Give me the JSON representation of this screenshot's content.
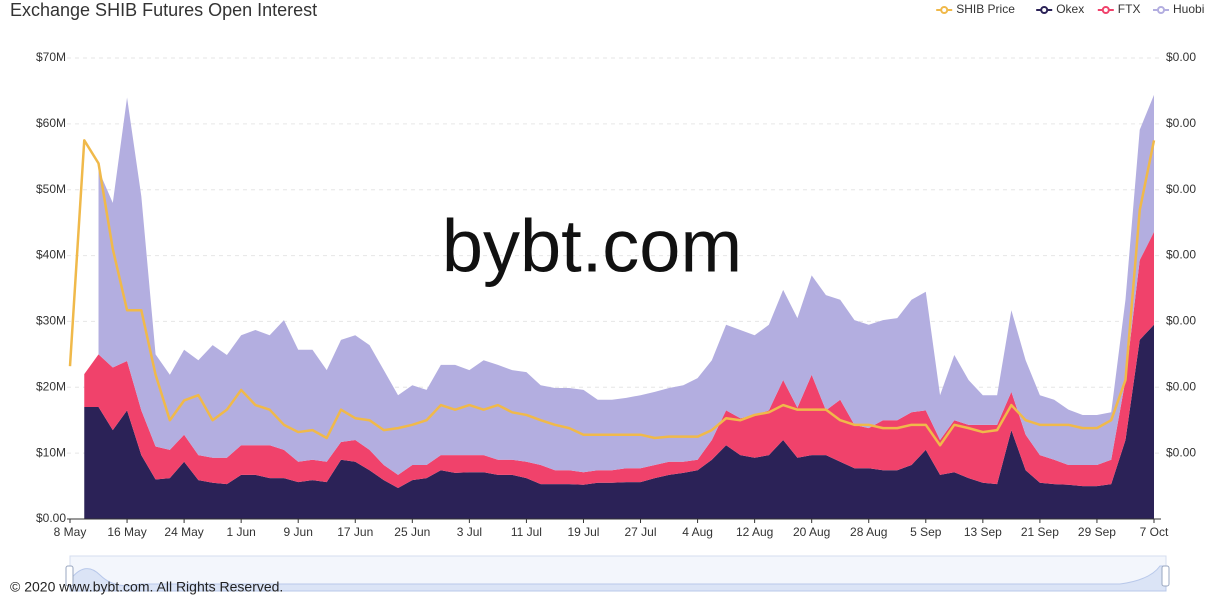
{
  "chart_data": {
    "type": "area",
    "stacked": true,
    "title": "Exchange SHIB Futures Open Interest",
    "annotation": "bybt.com",
    "footer": "© 2020 www.bybt.com. All Rights Reserved.",
    "legend": "top-right",
    "grid": true,
    "categories": [
      "8 May",
      null,
      null,
      null,
      "16 May",
      null,
      null,
      null,
      "24 May",
      null,
      null,
      null,
      "1 Jun",
      null,
      null,
      null,
      "9 Jun",
      null,
      null,
      null,
      "17 Jun",
      null,
      null,
      null,
      "25 Jun",
      null,
      null,
      null,
      "3 Jul",
      null,
      null,
      null,
      "11 Jul",
      null,
      null,
      null,
      "19 Jul",
      null,
      null,
      null,
      "27 Jul",
      null,
      null,
      null,
      "4 Aug",
      null,
      null,
      null,
      "12 Aug",
      null,
      null,
      null,
      "20 Aug",
      null,
      null,
      null,
      "28 Aug",
      null,
      null,
      null,
      "5 Sep",
      null,
      null,
      null,
      "13 Sep",
      null,
      null,
      null,
      "21 Sep",
      null,
      null,
      null,
      "29 Sep",
      null,
      null,
      null,
      "7 Oct"
    ],
    "ylim": [
      0,
      70
    ],
    "yticks": [
      {
        "value": 0,
        "label": "$0.00"
      },
      {
        "value": 10,
        "label": "$10M"
      },
      {
        "value": 20,
        "label": "$20M"
      },
      {
        "value": 30,
        "label": "$30M"
      },
      {
        "value": 40,
        "label": "$40M"
      },
      {
        "value": 50,
        "label": "$50M"
      },
      {
        "value": 60,
        "label": "$60M"
      },
      {
        "value": 70,
        "label": "$70M"
      }
    ],
    "y2lim": [
      0,
      3.5e-05
    ],
    "y2ticks": [
      {
        "value": 5e-06,
        "label": "$0.00"
      },
      {
        "value": 1e-05,
        "label": "$0.00"
      },
      {
        "value": 1.5e-05,
        "label": "$0.00"
      },
      {
        "value": 2e-05,
        "label": "$0.00"
      },
      {
        "value": 2.5e-05,
        "label": "$0.00"
      },
      {
        "value": 3e-05,
        "label": "$0.00"
      },
      {
        "value": 3.5e-05,
        "label": "$0.00"
      }
    ],
    "series": [
      {
        "name": "SHIB Price",
        "type": "line",
        "axis": "y2",
        "color": "#f0b94a",
        "values": [
          1.16e-05,
          2.875e-05,
          2.7e-05,
          2.05e-05,
          1.585e-05,
          1.585e-05,
          1.095e-05,
          7.5e-06,
          9e-06,
          9.4e-06,
          7.5e-06,
          8.3e-06,
          9.8e-06,
          8.65e-06,
          8.3e-06,
          7.15e-06,
          6.6e-06,
          6.75e-06,
          6.15e-06,
          8.3e-06,
          7.65e-06,
          7.5e-06,
          6.75e-06,
          6.9e-06,
          7.15e-06,
          7.5e-06,
          8.65e-06,
          8.3e-06,
          8.65e-06,
          8.3e-06,
          8.65e-06,
          8.1e-06,
          7.9e-06,
          7.5e-06,
          7.15e-06,
          6.9e-06,
          6.4e-06,
          6.4e-06,
          6.4e-06,
          6.4e-06,
          6.4e-06,
          6.15e-06,
          6.25e-06,
          6.25e-06,
          6.25e-06,
          6.75e-06,
          7.65e-06,
          7.5e-06,
          7.9e-06,
          8.1e-06,
          8.65e-06,
          8.3e-06,
          8.3e-06,
          8.3e-06,
          7.5e-06,
          7.15e-06,
          7.15e-06,
          6.9e-06,
          6.9e-06,
          7.15e-06,
          7.15e-06,
          5.6e-06,
          7.15e-06,
          6.9e-06,
          6.6e-06,
          6.75e-06,
          8.65e-06,
          7.5e-06,
          7.15e-06,
          7.15e-06,
          7.15e-06,
          6.9e-06,
          6.9e-06,
          7.5e-06,
          1.055e-05,
          2.345e-05,
          2.875e-05
        ]
      },
      {
        "name": "Okex",
        "type": "area",
        "color": "#2b2257",
        "values": [
          null,
          17,
          17,
          13.5,
          16.5,
          9.7,
          6,
          6.2,
          8.7,
          5.9,
          5.5,
          5.3,
          6.7,
          6.7,
          6.2,
          6.2,
          5.6,
          5.9,
          5.6,
          9,
          8.7,
          7.4,
          5.9,
          4.7,
          5.9,
          6.2,
          7.4,
          7,
          7.1,
          7.1,
          6.7,
          6.7,
          6.2,
          5.3,
          5.3,
          5.3,
          5.2,
          5.5,
          5.5,
          5.6,
          5.6,
          6.2,
          6.7,
          7,
          7.4,
          9,
          11.2,
          9.7,
          9.3,
          9.7,
          12,
          9.3,
          9.7,
          9.7,
          8.7,
          7.7,
          7.7,
          7.4,
          7.4,
          8.2,
          10.5,
          6.7,
          7.1,
          6.2,
          5.5,
          5.3,
          13.5,
          7.4,
          5.5,
          5.3,
          5.2,
          5,
          5,
          5.3,
          12,
          27.2,
          29.5
        ]
      },
      {
        "name": "FTX",
        "type": "area",
        "color": "#f0426b",
        "values": [
          null,
          5,
          8,
          9.5,
          7.5,
          6.8,
          5,
          4.3,
          4.1,
          3.8,
          3.8,
          4,
          4.5,
          4.5,
          5,
          4.3,
          3.1,
          3.1,
          3.1,
          2.7,
          3.3,
          3.1,
          2.3,
          2,
          2.3,
          2,
          2.3,
          2.7,
          2.6,
          2.6,
          2.3,
          2.3,
          2.5,
          2.9,
          2.1,
          2.1,
          1.9,
          1.9,
          1.9,
          2.1,
          2.1,
          2,
          2,
          1.7,
          1.6,
          3,
          5.3,
          5.6,
          6.5,
          6.8,
          9.1,
          7.6,
          12.2,
          6.8,
          9.4,
          6.6,
          6.1,
          7.6,
          7.6,
          8,
          6,
          5.3,
          7.9,
          8.1,
          8.8,
          9,
          5.8,
          5.4,
          4.2,
          3.7,
          3,
          3.2,
          3.2,
          3.7,
          9.1,
          12.1,
          14.1
        ]
      },
      {
        "name": "Huobi",
        "type": "area",
        "color": "#b3aee0",
        "values": [
          null,
          null,
          28,
          25,
          40,
          32.5,
          14,
          11.4,
          12.9,
          14.4,
          17.1,
          15.6,
          16.7,
          17.5,
          16.7,
          19.7,
          17,
          16.7,
          13.9,
          15.5,
          15.9,
          15.9,
          14.4,
          12.1,
          12.1,
          11.4,
          13.7,
          13.7,
          12.9,
          14.4,
          14.4,
          13.6,
          13.6,
          12.1,
          12.5,
          12.5,
          12.5,
          10.7,
          10.7,
          10.7,
          11.1,
          11.1,
          11.2,
          11.6,
          12.4,
          12.1,
          13,
          13.4,
          12.1,
          13,
          13.7,
          13.6,
          15.1,
          17.5,
          15.2,
          15.9,
          15.7,
          15.2,
          15.5,
          17.1,
          18,
          6.8,
          9.9,
          6.8,
          4.5,
          4.5,
          12.4,
          11.3,
          9.1,
          9.1,
          8.4,
          7.6,
          7.6,
          7.2,
          12.2,
          19.8,
          20.8
        ]
      }
    ]
  }
}
